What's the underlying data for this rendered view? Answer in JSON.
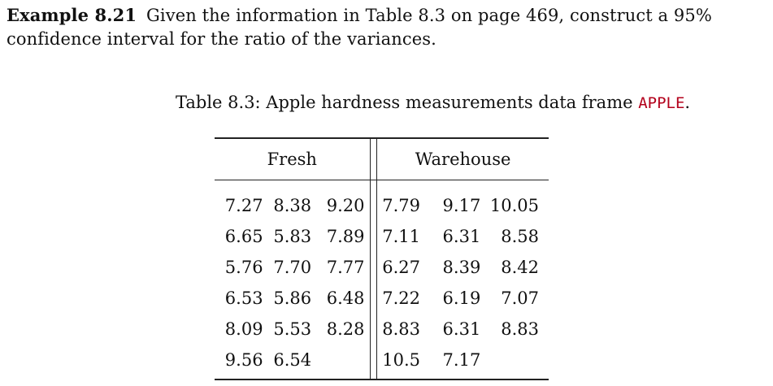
{
  "example": {
    "label": "Example 8.21",
    "text": "Given the information in Table 8.3 on page 469, construct a 95% confidence interval for the ratio of the variances."
  },
  "caption": {
    "prefix": "Table 8.3: Apple hardness measurements data frame ",
    "code": "APPLE",
    "suffix": "."
  },
  "table": {
    "headers": [
      "Fresh",
      "Warehouse"
    ],
    "rows": [
      [
        "7.27",
        "8.38",
        "9.20",
        "7.79",
        "9.17",
        "10.05"
      ],
      [
        "6.65",
        "5.83",
        "7.89",
        "7.11",
        "6.31",
        "8.58"
      ],
      [
        "5.76",
        "7.70",
        "7.77",
        "6.27",
        "8.39",
        "8.42"
      ],
      [
        "6.53",
        "5.86",
        "6.48",
        "7.22",
        "6.19",
        "7.07"
      ],
      [
        "8.09",
        "5.53",
        "8.28",
        "8.83",
        "6.31",
        "8.83"
      ],
      [
        "9.56",
        "6.54",
        "",
        "10.5",
        "7.17",
        ""
      ]
    ]
  }
}
